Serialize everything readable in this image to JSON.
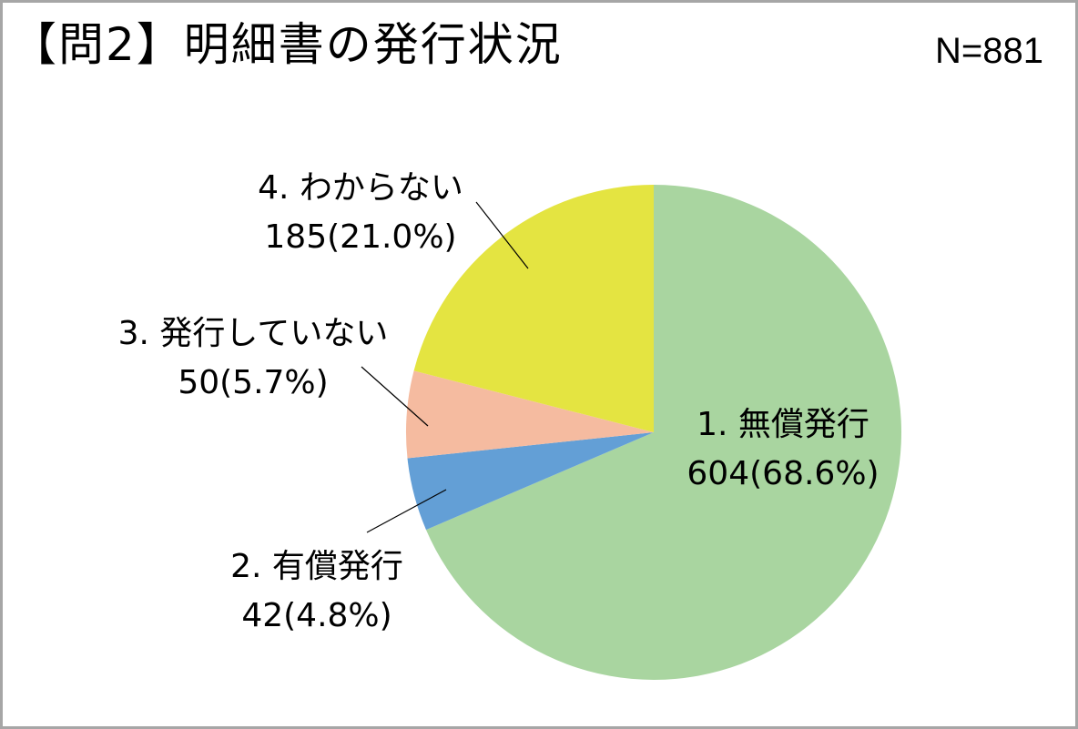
{
  "title": "【問2】明細書の発行状況",
  "n_label": "N=881",
  "chart_data": {
    "type": "pie",
    "start_angle_deg": 0,
    "direction": "clockwise",
    "slices": [
      {
        "label": "1. 無償発行",
        "value": 604,
        "value_text": "604(68.6%)",
        "percent": 68.6,
        "color": "#a9d5a0"
      },
      {
        "label": "2. 有償発行",
        "value": 42,
        "value_text": "42(4.8%)",
        "percent": 4.8,
        "color": "#639fd6"
      },
      {
        "label": "3. 発行していない",
        "value": 50,
        "value_text": "50(5.7%)",
        "percent": 5.7,
        "color": "#f5bba0"
      },
      {
        "label": "4. わからない",
        "value": 185,
        "value_text": "185(21.0%)",
        "percent": 21.0,
        "color": "#e4e441"
      }
    ]
  }
}
